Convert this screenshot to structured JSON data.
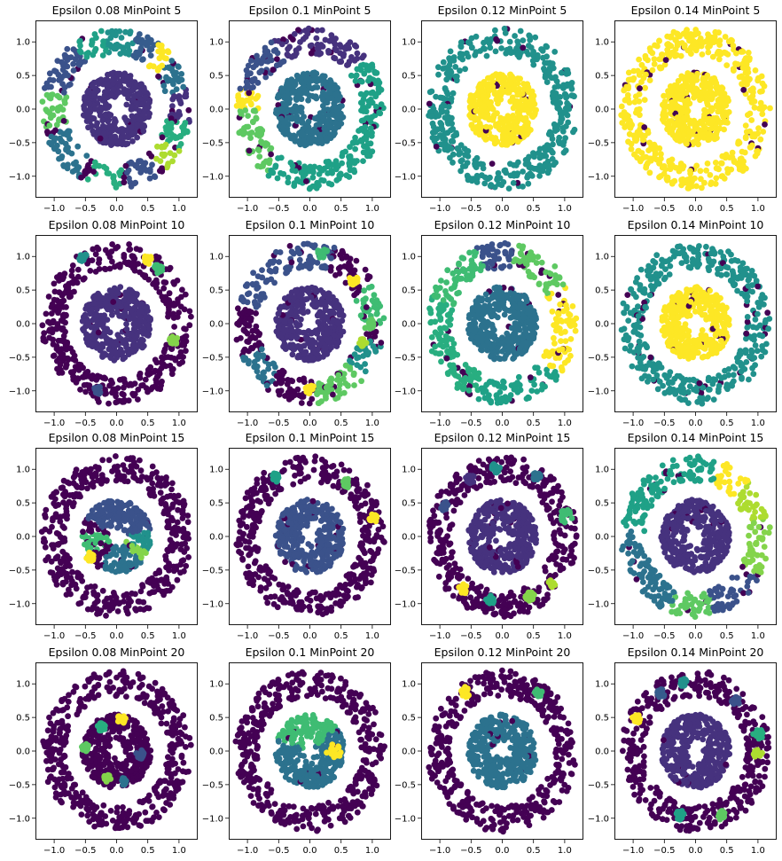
{
  "figure": {
    "x_ticks": [
      "−1.0",
      "−0.5",
      "0.0",
      "0.5",
      "1.0"
    ],
    "y_ticks": [
      "1.0",
      "0.5",
      "0.0",
      "−0.5",
      "−1.0"
    ]
  },
  "colors": {
    "noise": "#440154",
    "palette": [
      "#46327e",
      "#3b528b",
      "#365c8d",
      "#2c728e",
      "#277f8e",
      "#21918c",
      "#1fa187",
      "#28ae80",
      "#3fbc73",
      "#5ec962",
      "#84d44b",
      "#addc30",
      "#d8e219",
      "#fde725"
    ]
  },
  "chart_data": [
    {
      "type": "scatter",
      "title": "Epsilon 0.08 MinPoint 5",
      "xlim": [
        -1.3,
        1.3
      ],
      "ylim": [
        -1.32,
        1.32
      ],
      "inner_color": "#46337e",
      "outer_segments": [
        {
          "from": 350,
          "to": 15,
          "color": "#46327e"
        },
        {
          "from": 15,
          "to": 40,
          "color": "#2c728e"
        },
        {
          "from": 40,
          "to": 55,
          "color": "#fde725"
        },
        {
          "from": 55,
          "to": 75,
          "color": "#365c8d"
        },
        {
          "from": 75,
          "to": 100,
          "color": "#21918c"
        },
        {
          "from": 100,
          "to": 125,
          "color": "#1fa187"
        },
        {
          "from": 125,
          "to": 165,
          "color": "#3b528b"
        },
        {
          "from": 165,
          "to": 195,
          "color": "#5ec962"
        },
        {
          "from": 200,
          "to": 240,
          "color": "#2c728e"
        },
        {
          "from": 245,
          "to": 275,
          "color": "#28ae80"
        },
        {
          "from": 280,
          "to": 305,
          "color": "#3b528b"
        },
        {
          "from": 310,
          "to": 330,
          "color": "#addc30"
        },
        {
          "from": 330,
          "to": 350,
          "color": "#28ae80"
        }
      ]
    },
    {
      "type": "scatter",
      "title": "Epsilon 0.1 MinPoint 5",
      "xlim": [
        -1.3,
        1.3
      ],
      "ylim": [
        -1.32,
        1.32
      ],
      "inner_color": "#2c728e",
      "outer_segments": [
        {
          "from": 340,
          "to": 40,
          "color": "#1fa187"
        },
        {
          "from": 40,
          "to": 120,
          "color": "#46327e"
        },
        {
          "from": 120,
          "to": 165,
          "color": "#3b528b"
        },
        {
          "from": 165,
          "to": 180,
          "color": "#fde725"
        },
        {
          "from": 180,
          "to": 235,
          "color": "#5ec962"
        },
        {
          "from": 235,
          "to": 340,
          "color": "#1fa187"
        }
      ]
    },
    {
      "type": "scatter",
      "title": "Epsilon 0.12 MinPoint 5",
      "xlim": [
        -1.3,
        1.3
      ],
      "ylim": [
        -1.32,
        1.32
      ],
      "inner_color": "#fde725",
      "outer_segments": [
        {
          "from": 0,
          "to": 360,
          "color": "#21918c"
        }
      ]
    },
    {
      "type": "scatter",
      "title": "Epsilon 0.14 MinPoint 5",
      "xlim": [
        -1.3,
        1.3
      ],
      "ylim": [
        -1.32,
        1.32
      ],
      "inner_color": "#fde725",
      "outer_segments": [
        {
          "from": 0,
          "to": 360,
          "color": "#fde725"
        }
      ]
    },
    {
      "type": "scatter",
      "title": "Epsilon 0.08 MinPoint 10",
      "xlim": [
        -1.3,
        1.3
      ],
      "ylim": [
        -1.32,
        1.32
      ],
      "inner_color": "#46327e",
      "outer_segments": [
        {
          "from": 0,
          "to": 360,
          "color": "#440154"
        }
      ],
      "clusters": [
        {
          "x": 0.5,
          "y": 0.95,
          "r": 0.07,
          "color": "#fde725"
        },
        {
          "x": 0.67,
          "y": 0.82,
          "r": 0.07,
          "color": "#3fbc73"
        },
        {
          "x": -0.55,
          "y": 1.0,
          "r": 0.07,
          "color": "#21918c"
        },
        {
          "x": 0.92,
          "y": -0.25,
          "r": 0.07,
          "color": "#84d44b"
        },
        {
          "x": -0.3,
          "y": -1.0,
          "r": 0.07,
          "color": "#3b528b"
        }
      ]
    },
    {
      "type": "scatter",
      "title": "Epsilon 0.1 MinPoint 10",
      "xlim": [
        -1.3,
        1.3
      ],
      "ylim": [
        -1.32,
        1.32
      ],
      "inner_color": "#46327e",
      "outer_segments": [
        {
          "from": 0,
          "to": 30,
          "color": "#3fbc73"
        },
        {
          "from": 30,
          "to": 70,
          "color": "#440154"
        },
        {
          "from": 70,
          "to": 165,
          "color": "#3b528b"
        },
        {
          "from": 165,
          "to": 205,
          "color": "#440154"
        },
        {
          "from": 205,
          "to": 235,
          "color": "#2c728e"
        },
        {
          "from": 235,
          "to": 275,
          "color": "#440154"
        },
        {
          "from": 275,
          "to": 315,
          "color": "#5ec962"
        },
        {
          "from": 315,
          "to": 345,
          "color": "#21918c"
        },
        {
          "from": 345,
          "to": 360,
          "color": "#440154"
        }
      ],
      "clusters": [
        {
          "x": 0.7,
          "y": 0.65,
          "r": 0.07,
          "color": "#fde725"
        },
        {
          "x": 0.2,
          "y": 1.05,
          "r": 0.08,
          "color": "#3fbc73"
        },
        {
          "x": 0.95,
          "y": 0.0,
          "r": 0.09,
          "color": "#5ec962"
        },
        {
          "x": 0.0,
          "y": -0.97,
          "r": 0.07,
          "color": "#fde725"
        },
        {
          "x": 0.85,
          "y": -0.28,
          "r": 0.06,
          "color": "#addc30"
        }
      ]
    },
    {
      "type": "scatter",
      "title": "Epsilon 0.12 MinPoint 10",
      "xlim": [
        -1.3,
        1.3
      ],
      "ylim": [
        -1.32,
        1.32
      ],
      "inner_color": "#2c728e",
      "outer_segments": [
        {
          "from": 320,
          "to": 30,
          "color": "#fde725"
        },
        {
          "from": 30,
          "to": 80,
          "color": "#5ec962"
        },
        {
          "from": 80,
          "to": 110,
          "color": "#3b528b"
        },
        {
          "from": 110,
          "to": 160,
          "color": "#3fbc73"
        },
        {
          "from": 160,
          "to": 250,
          "color": "#28ae80"
        },
        {
          "from": 250,
          "to": 320,
          "color": "#1fa187"
        }
      ]
    },
    {
      "type": "scatter",
      "title": "Epsilon 0.14 MinPoint 10",
      "xlim": [
        -1.3,
        1.3
      ],
      "ylim": [
        -1.32,
        1.32
      ],
      "inner_color": "#fde725",
      "outer_segments": [
        {
          "from": 0,
          "to": 360,
          "color": "#21918c"
        }
      ]
    },
    {
      "type": "scatter",
      "title": "Epsilon 0.08 MinPoint 15",
      "xlim": [
        -1.3,
        1.3
      ],
      "ylim": [
        -1.32,
        1.32
      ],
      "inner_color": "#440154",
      "inner_segments": [
        {
          "from": 10,
          "to": 150,
          "color": "#3b528b"
        },
        {
          "from": 175,
          "to": 215,
          "color": "#3fbc73"
        },
        {
          "from": 240,
          "to": 320,
          "color": "#2c728e"
        },
        {
          "from": 320,
          "to": 335,
          "color": "#84d44b"
        },
        {
          "from": 335,
          "to": 10,
          "color": "#21918c"
        }
      ],
      "outer_segments": [
        {
          "from": 0,
          "to": 360,
          "color": "#440154"
        }
      ],
      "clusters": [
        {
          "x": -0.42,
          "y": -0.3,
          "r": 0.07,
          "color": "#fde725"
        }
      ]
    },
    {
      "type": "scatter",
      "title": "Epsilon 0.1 MinPoint 15",
      "xlim": [
        -1.3,
        1.3
      ],
      "ylim": [
        -1.32,
        1.32
      ],
      "inner_color": "#3b528b",
      "outer_segments": [
        {
          "from": 0,
          "to": 360,
          "color": "#440154"
        }
      ],
      "clusters": [
        {
          "x": -0.55,
          "y": 0.88,
          "r": 0.07,
          "color": "#1fa187"
        },
        {
          "x": 0.6,
          "y": 0.8,
          "r": 0.07,
          "color": "#5ec962"
        },
        {
          "x": 1.02,
          "y": 0.28,
          "r": 0.07,
          "color": "#fde725"
        }
      ]
    },
    {
      "type": "scatter",
      "title": "Epsilon 0.12 MinPoint 15",
      "xlim": [
        -1.3,
        1.3
      ],
      "ylim": [
        -1.32,
        1.32
      ],
      "inner_color": "#46327e",
      "outer_segments": [
        {
          "from": 0,
          "to": 360,
          "color": "#440154"
        }
      ],
      "clusters": [
        {
          "x": -0.1,
          "y": 1.02,
          "r": 0.07,
          "color": "#21918c"
        },
        {
          "x": 0.55,
          "y": 0.9,
          "r": 0.07,
          "color": "#2c728e"
        },
        {
          "x": -0.52,
          "y": 0.85,
          "r": 0.08,
          "color": "#46327e"
        },
        {
          "x": -0.92,
          "y": 0.45,
          "r": 0.07,
          "color": "#3b528b"
        },
        {
          "x": 1.02,
          "y": 0.3,
          "r": 0.1,
          "color": "#3fbc73"
        },
        {
          "x": -0.62,
          "y": -0.78,
          "r": 0.08,
          "color": "#fde725"
        },
        {
          "x": -0.2,
          "y": -0.95,
          "r": 0.07,
          "color": "#1fa187"
        },
        {
          "x": 0.45,
          "y": -0.9,
          "r": 0.08,
          "color": "#84d44b"
        },
        {
          "x": 0.8,
          "y": -0.7,
          "r": 0.06,
          "color": "#addc30"
        }
      ]
    },
    {
      "type": "scatter",
      "title": "Epsilon 0.14 MinPoint 15",
      "xlim": [
        -1.3,
        1.3
      ],
      "ylim": [
        -1.32,
        1.32
      ],
      "inner_color": "#46327e",
      "outer_segments": [
        {
          "from": 15,
          "to": 45,
          "color": "#addc30"
        },
        {
          "from": 45,
          "to": 70,
          "color": "#fde725"
        },
        {
          "from": 70,
          "to": 175,
          "color": "#1fa187"
        },
        {
          "from": 175,
          "to": 250,
          "color": "#2c728e"
        },
        {
          "from": 250,
          "to": 285,
          "color": "#5ec962"
        },
        {
          "from": 285,
          "to": 330,
          "color": "#3b528b"
        },
        {
          "from": 330,
          "to": 15,
          "color": "#84d44b"
        }
      ]
    },
    {
      "type": "scatter",
      "title": "Epsilon 0.08 MinPoint 20",
      "xlim": [
        -1.3,
        1.3
      ],
      "ylim": [
        -1.32,
        1.32
      ],
      "inner_color": "#440154",
      "outer_segments": [
        {
          "from": 0,
          "to": 360,
          "color": "#440154"
        }
      ],
      "clusters": [
        {
          "x": 0.08,
          "y": 0.48,
          "r": 0.07,
          "color": "#fde725"
        },
        {
          "x": -0.25,
          "y": 0.35,
          "r": 0.07,
          "color": "#28ae80"
        },
        {
          "x": -0.5,
          "y": 0.05,
          "r": 0.06,
          "color": "#5ec962"
        },
        {
          "x": 0.38,
          "y": -0.05,
          "r": 0.07,
          "color": "#3b528b"
        },
        {
          "x": -0.15,
          "y": -0.4,
          "r": 0.06,
          "color": "#84d44b"
        },
        {
          "x": 0.1,
          "y": -0.45,
          "r": 0.06,
          "color": "#2c728e"
        }
      ]
    },
    {
      "type": "scatter",
      "title": "Epsilon 0.1 MinPoint 20",
      "xlim": [
        -1.3,
        1.3
      ],
      "ylim": [
        -1.32,
        1.32
      ],
      "inner_color": "#2c728e",
      "inner_segments": [
        {
          "from": 40,
          "to": 160,
          "color": "#3fbc73"
        }
      ],
      "outer_segments": [
        {
          "from": 0,
          "to": 360,
          "color": "#440154"
        }
      ],
      "clusters": [
        {
          "x": 0.38,
          "y": 0.0,
          "r": 0.12,
          "color": "#fde725"
        }
      ]
    },
    {
      "type": "scatter",
      "title": "Epsilon 0.12 MinPoint 20",
      "xlim": [
        -1.3,
        1.3
      ],
      "ylim": [
        -1.32,
        1.32
      ],
      "inner_color": "#2c728e",
      "outer_segments": [
        {
          "from": 0,
          "to": 360,
          "color": "#440154"
        }
      ],
      "clusters": [
        {
          "x": -0.58,
          "y": 0.88,
          "r": 0.08,
          "color": "#fde725"
        },
        {
          "x": 0.58,
          "y": 0.88,
          "r": 0.07,
          "color": "#3fbc73"
        }
      ]
    },
    {
      "type": "scatter",
      "title": "Epsilon 0.14 MinPoint 20",
      "xlim": [
        -1.3,
        1.3
      ],
      "ylim": [
        -1.32,
        1.32
      ],
      "inner_color": "#46327e",
      "outer_segments": [
        {
          "from": 0,
          "to": 360,
          "color": "#440154"
        }
      ],
      "clusters": [
        {
          "x": -0.55,
          "y": 0.85,
          "r": 0.07,
          "color": "#365c8d"
        },
        {
          "x": -0.2,
          "y": 1.02,
          "r": 0.06,
          "color": "#21918c"
        },
        {
          "x": 0.65,
          "y": 0.75,
          "r": 0.07,
          "color": "#3b528b"
        },
        {
          "x": -0.95,
          "y": 0.48,
          "r": 0.07,
          "color": "#fde725"
        },
        {
          "x": 1.0,
          "y": 0.25,
          "r": 0.08,
          "color": "#28ae80"
        },
        {
          "x": 1.0,
          "y": -0.05,
          "r": 0.07,
          "color": "#addc30"
        },
        {
          "x": -0.25,
          "y": -0.95,
          "r": 0.07,
          "color": "#1fa187"
        },
        {
          "x": 0.4,
          "y": -0.95,
          "r": 0.07,
          "color": "#5ec962"
        }
      ]
    }
  ]
}
